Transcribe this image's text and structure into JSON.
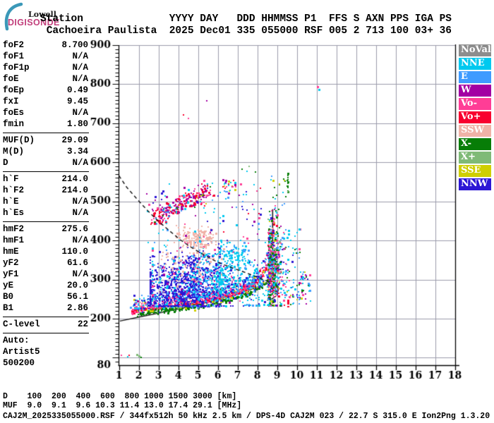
{
  "logo": {
    "line1": "Lowell",
    "line2": "DIGISONDE"
  },
  "header": {
    "line1": "Station              YYYY DAY   DDD HHMMSS P1  FFS S AXN PPS IGA PS",
    "line2": " Cachoeira Paulista  2025 Dec01 335 055000 RSF 005 2 713 100 03+ 36"
  },
  "params_panel": {
    "groups": [
      {
        "rows": [
          [
            "foF2",
            "8.700"
          ],
          [
            "foF1",
            "N/A"
          ],
          [
            "foF1p",
            "N/A"
          ],
          [
            "foE",
            "N/A"
          ],
          [
            "foEp",
            "0.49"
          ],
          [
            "fxI",
            "9.45"
          ],
          [
            "foEs",
            "N/A"
          ],
          [
            "fmin",
            "1.80"
          ]
        ]
      },
      {
        "rows": [
          [
            "MUF(D)",
            "29.09"
          ],
          [
            "M(D)",
            "3.34"
          ],
          [
            "D",
            "N/A"
          ]
        ]
      },
      {
        "rows": [
          [
            "h`F",
            "214.0"
          ],
          [
            "h`F2",
            "214.0"
          ],
          [
            "h`E",
            "N/A"
          ],
          [
            "h`Es",
            "N/A"
          ]
        ]
      },
      {
        "rows": [
          [
            "hmF2",
            "275.6"
          ],
          [
            "hmF1",
            "N/A"
          ],
          [
            "hmE",
            "110.0"
          ],
          [
            "yF2",
            "61.6"
          ],
          [
            "yF1",
            "N/A"
          ],
          [
            "yE",
            "20.0"
          ],
          [
            "B0",
            "56.1"
          ],
          [
            "B1",
            "2.86"
          ]
        ]
      },
      {
        "rows": [
          [
            "C-level",
            "22"
          ]
        ]
      },
      {
        "rows": [
          [
            "Auto:",
            ""
          ],
          [
            "Artist5",
            ""
          ],
          [
            "500200",
            ""
          ]
        ]
      }
    ]
  },
  "legend": {
    "items": [
      {
        "label": "NoVal",
        "color": "#8d8d8d"
      },
      {
        "label": "NNE",
        "color": "#00c9ef"
      },
      {
        "label": "E",
        "color": "#3f9bff"
      },
      {
        "label": "W",
        "color": "#a300a3"
      },
      {
        "label": "Vo-",
        "color": "#ff3d96"
      },
      {
        "label": "Vo+",
        "color": "#f8002f"
      },
      {
        "label": "SSW",
        "color": "#f0b2a7"
      },
      {
        "label": "X-",
        "color": "#077d07"
      },
      {
        "label": "X+",
        "color": "#7fba77"
      },
      {
        "label": "SSE",
        "color": "#cfcf00"
      },
      {
        "label": "NNW",
        "color": "#2c17d5"
      }
    ]
  },
  "chart_data": {
    "type": "scatter",
    "title": "",
    "xlabel": "",
    "ylabel": "",
    "grid": true,
    "legend_position": "right",
    "x_range": [
      1,
      18
    ],
    "y_range": [
      80,
      900
    ],
    "x_ticks": [
      1,
      2,
      3,
      4,
      5,
      6,
      7,
      8,
      9,
      10,
      11,
      12,
      13,
      14,
      15,
      16,
      17,
      18
    ],
    "y_ticks_labeled": [
      900,
      800,
      700,
      600,
      500,
      400,
      300,
      200,
      80
    ],
    "y_minor_step": 10,
    "curves": {
      "dashed_transmission": [
        [
          1.0,
          566
        ],
        [
          1.4,
          536
        ],
        [
          1.95,
          504
        ],
        [
          2.5,
          474
        ],
        [
          3.05,
          447
        ],
        [
          3.6,
          423
        ],
        [
          4.1,
          402
        ],
        [
          4.65,
          383
        ],
        [
          5.2,
          366
        ],
        [
          5.7,
          352
        ],
        [
          6.25,
          339
        ],
        [
          6.85,
          328
        ],
        [
          7.4,
          318
        ],
        [
          7.9,
          308
        ],
        [
          8.3,
          300
        ],
        [
          8.6,
          294
        ]
      ],
      "solid_profile": [
        [
          1.05,
          194
        ],
        [
          2.1,
          205
        ],
        [
          3.2,
          216
        ],
        [
          4.3,
          228
        ],
        [
          5.4,
          241
        ],
        [
          6.4,
          255
        ],
        [
          7.3,
          268
        ],
        [
          8.0,
          281
        ],
        [
          8.5,
          291
        ],
        [
          8.8,
          296
        ],
        [
          9.0,
          288
        ],
        [
          9.06,
          272
        ],
        [
          8.95,
          258
        ],
        [
          8.72,
          250
        ],
        [
          8.5,
          247
        ]
      ],
      "profile_vertical": {
        "f": 8.78,
        "h": [
          308,
          480
        ]
      }
    },
    "trace_anchors": [
      [
        1.65,
        217
      ],
      [
        2.2,
        221
      ],
      [
        3,
        226
      ],
      [
        4,
        232
      ],
      [
        5,
        240
      ],
      [
        6,
        249
      ],
      [
        6.5,
        256
      ],
      [
        7,
        264
      ],
      [
        7.5,
        276
      ],
      [
        8,
        292
      ],
      [
        8.25,
        307
      ],
      [
        8.45,
        327
      ],
      [
        8.6,
        350
      ],
      [
        8.7,
        380
      ],
      [
        8.78,
        415
      ],
      [
        8.84,
        448
      ]
    ],
    "clusters": [
      {
        "n": 320,
        "shape": "trace",
        "colors": {
          "Vo+": 1
        },
        "df": 0,
        "dh": 2,
        "jh": 2.5
      },
      {
        "n": 200,
        "shape": "trace",
        "colors": {
          "Vo-": 1
        },
        "df": 0.04,
        "dh": 7,
        "jh": 5
      },
      {
        "n": 280,
        "shape": "trace",
        "colors": {
          "X-": 1
        },
        "df": 0.3,
        "dh": -6,
        "jh": 3
      },
      {
        "n": 70,
        "shape": "trace",
        "colors": {
          "X+": 0.6,
          "SSE": 0.4
        },
        "df": 0.15,
        "dh": 0,
        "jh": 6
      },
      {
        "n": 380,
        "shape": "trace",
        "colors": {
          "NNE": 0.3,
          "NNW": 0.25,
          "E": 0.12,
          "Vo-": 0.12,
          "W": 0.08,
          "Vo+": 0.05,
          "SSW": 0.05,
          "SSE": 0.03
        },
        "df": 0,
        "dh": 18,
        "jh": 10,
        "fmax": 8.6
      },
      {
        "n": 550,
        "shape": "wall",
        "colors": {
          "Vo-": 0.22,
          "X-": 0.2,
          "NNE": 0.13,
          "NNW": 0.12,
          "E": 0.1,
          "Vo+": 0.08,
          "W": 0.05,
          "SSE": 0.05,
          "X+": 0.03,
          "SSW": 0.02
        }
      },
      {
        "n": 100,
        "shape": "box",
        "f": [
          9.1,
          10.7
        ],
        "h": [
          235,
          330
        ],
        "colors": {
          "NNE": 0.25,
          "E": 0.2,
          "NNW": 0.15,
          "X-": 0.15,
          "Vo-": 0.1,
          "SSE": 0.08,
          "W": 0.07
        }
      },
      {
        "n": 45,
        "shape": "box",
        "f": [
          9.0,
          10.2
        ],
        "h": [
          330,
          430
        ],
        "colors": {
          "NNE": 0.3,
          "E": 0.2,
          "X-": 0.2,
          "Vo-": 0.15,
          "NNW": 0.15
        }
      },
      {
        "n": 800,
        "shape": "gauss",
        "cf": 4.3,
        "sf": 1.15,
        "fclip": [
          2.6,
          8.4
        ],
        "ch": 282,
        "sh": 40,
        "hclip": [
          233,
          392
        ],
        "tilt": 6,
        "colors": {
          "NNW": 1
        }
      },
      {
        "n": 190,
        "shape": "gauss",
        "cf": 4.8,
        "sf": 1.4,
        "fclip": [
          2.7,
          8.4
        ],
        "ch": 300,
        "sh": 48,
        "hclip": [
          233,
          400
        ],
        "tilt": 6,
        "colors": {
          "NNE": 1
        }
      },
      {
        "n": 90,
        "shape": "gauss",
        "cf": 5.2,
        "sf": 1.5,
        "fclip": [
          2.8,
          8.4
        ],
        "ch": 295,
        "sh": 45,
        "hclip": [
          233,
          395
        ],
        "tilt": 6,
        "colors": {
          "E": 1
        }
      },
      {
        "n": 80,
        "shape": "gauss",
        "cf": 4.5,
        "sf": 1.4,
        "fclip": [
          2.7,
          8.0
        ],
        "ch": 300,
        "sh": 50,
        "hclip": [
          235,
          400
        ],
        "tilt": 0,
        "colors": {
          "W": 0.5,
          "Vo-": 0.5
        }
      },
      {
        "n": 80,
        "shape": "gauss",
        "cf": 4.6,
        "sf": 1.0,
        "fclip": [
          3.0,
          6.5
        ],
        "ch": 345,
        "sh": 28,
        "hclip": [
          260,
          400
        ],
        "tilt": 0,
        "colors": {
          "SSW": 1
        }
      },
      {
        "n": 140,
        "shape": "gauss",
        "cf": 4.9,
        "sf": 0.5,
        "fclip": [
          3.9,
          5.9
        ],
        "ch": 408,
        "sh": 13,
        "hclip": [
          380,
          440
        ],
        "tilt": 0,
        "colors": {
          "SSW": 1
        }
      },
      {
        "n": 110,
        "shape": "gauss",
        "cf": 6.8,
        "sf": 0.42,
        "fclip": [
          6.0,
          7.6
        ],
        "ch": 360,
        "sh": 17,
        "hclip": [
          325,
          395
        ],
        "tilt": 0,
        "colors": {
          "NNE": 0.85,
          "E": 0.15
        }
      },
      {
        "n": 90,
        "shape": "gauss",
        "cf": 6.15,
        "sf": 0.22,
        "fclip": [
          5.7,
          6.6
        ],
        "ch": 290,
        "sh": 22,
        "hclip": [
          245,
          330
        ],
        "tilt": 0,
        "colors": {
          "NNE": 1
        }
      },
      {
        "n": 120,
        "shape": "gauss",
        "cf": 7.6,
        "sf": 0.5,
        "fclip": [
          6.8,
          8.5
        ],
        "ch": 280,
        "sh": 35,
        "hclip": [
          235,
          345
        ],
        "tilt": 0,
        "colors": {
          "NNE": 0.6,
          "E": 0.2,
          "NNW": 0.2
        }
      },
      {
        "n": 230,
        "shape": "band",
        "p0": [
          2.9,
          462
        ],
        "p1": [
          5.65,
          528
        ],
        "w": 11,
        "colors": {
          "Vo+": 0.42,
          "W": 0.3,
          "Vo-": 0.12,
          "X-": 0.05,
          "NNE": 0.05,
          "SSE": 0.03,
          "E": 0.03
        }
      },
      {
        "n": 16,
        "shape": "box",
        "f": [
          2.6,
          3.4
        ],
        "h": [
          440,
          465
        ],
        "colors": {
          "Vo+": 0.7,
          "Vo-": 0.3
        }
      },
      {
        "n": 24,
        "shape": "box",
        "f": [
          6.25,
          6.9
        ],
        "h": [
          525,
          557
        ],
        "colors": {
          "W": 0.3,
          "NNE": 0.2,
          "SSE": 0.15,
          "Vo-": 0.15,
          "E": 0.1,
          "Vo+": 0.1
        }
      },
      {
        "n": 110,
        "shape": "box",
        "f": [
          2.3,
          8.3
        ],
        "h": [
          390,
          548
        ],
        "colors": {
          "NNE": 0.3,
          "NNW": 0.22,
          "Vo-": 0.15,
          "W": 0.12,
          "Vo+": 0.11,
          "E": 0.1
        }
      },
      {
        "n": 26,
        "shape": "box",
        "f": [
          8.6,
          9.45
        ],
        "h": [
          455,
          565
        ],
        "colors": {
          "X-": 0.35,
          "NNE": 0.2,
          "Vo-": 0.15,
          "W": 0.1,
          "SSE": 0.1,
          "E": 0.1
        }
      },
      {
        "n": 13,
        "shape": "vstrip",
        "f": 9.56,
        "h": [
          523,
          574
        ],
        "colors": {
          "X-": 0.85,
          "X+": 0.15
        }
      }
    ],
    "extra_points": [
      [
        11.05,
        793,
        "Vo-",
        3
      ],
      [
        11.12,
        786,
        "NNE",
        3
      ],
      [
        5.45,
        757,
        "W",
        2
      ],
      [
        4.27,
        721,
        "Vo+",
        2
      ],
      [
        4.52,
        712,
        "Vo-",
        2
      ],
      [
        7.23,
        582,
        "X-",
        2
      ],
      [
        7.91,
        575,
        "X-",
        2
      ],
      [
        7.48,
        577,
        "NNE",
        2
      ],
      [
        7.6,
        590,
        "X+",
        2
      ],
      [
        1.12,
        107,
        "Vo-",
        2
      ],
      [
        1.5,
        106,
        "Vo+",
        2
      ],
      [
        1.45,
        103,
        "NNE",
        2
      ],
      [
        1.9,
        108,
        "X+",
        3
      ],
      [
        2.02,
        105,
        "X+",
        3
      ],
      [
        2.12,
        101,
        "X-",
        2
      ]
    ],
    "marks": [
      {
        "f": 9.56,
        "h_top": 248,
        "h_bot": 236,
        "w": 3,
        "color": "Vo+"
      },
      {
        "f": 9.56,
        "h_top": 232,
        "h_bot": 228,
        "w": 3,
        "color": "Vo+"
      }
    ],
    "muf_table": {
      "row_d_label": "D",
      "D": [
        100,
        200,
        400,
        600,
        800,
        1000,
        1500,
        3000
      ],
      "D_unit": "[km]",
      "row_muf_label": "MUF",
      "MUF": [
        9.0,
        9.1,
        9.6,
        10.3,
        11.4,
        13.0,
        17.4,
        29.1
      ],
      "MUF_unit": "[MHz]"
    }
  },
  "footer": {
    "d_row": "D    100  200  400  600  800 1000 1500 3000 [km]",
    "muf_row": "MUF  9.0  9.1  9.6 10.3 11.4 13.0 17.4 29.1 [MHz]",
    "info_row": "CAJ2M_2025335055000.RSF / 344fx512h 50 kHz 2.5 km / DPS-4D CAJ2M 023 / 22.7 S 315.0 E Ion2Png 1.3.20"
  }
}
